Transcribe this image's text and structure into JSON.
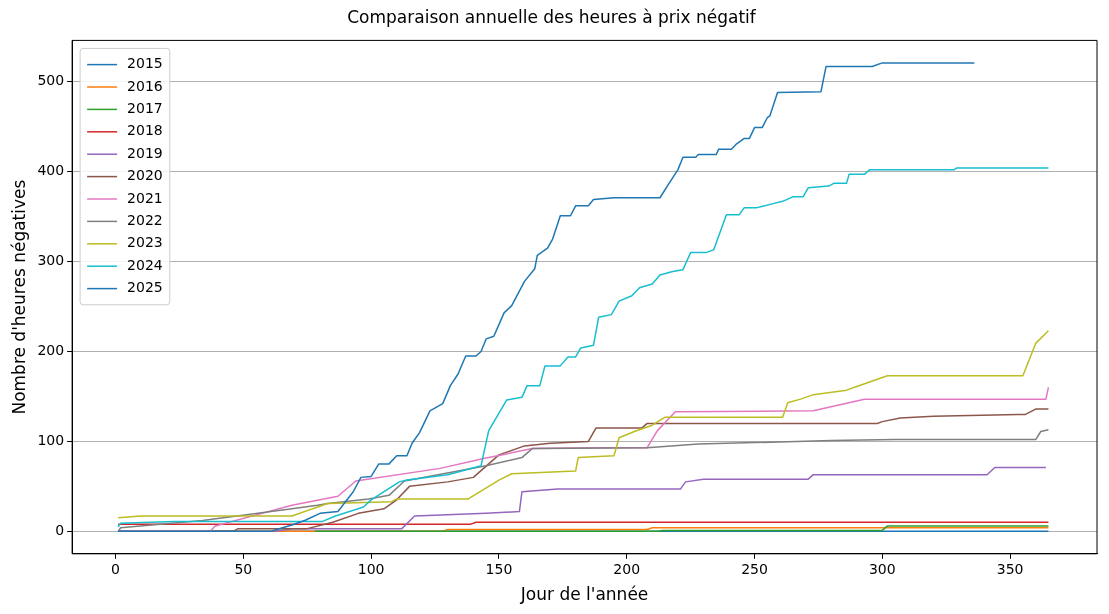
{
  "chart_data": {
    "type": "line",
    "title": "Comparaison annuelle des heures à prix négatif",
    "xlabel": "Jour de l'année",
    "ylabel": "Nombre d'heures négatives",
    "xlim": [
      -17,
      384
    ],
    "xticks": [
      0,
      50,
      100,
      150,
      200,
      250,
      300,
      350
    ],
    "ylim": [
      -25,
      546
    ],
    "yticks": [
      0,
      100,
      200,
      300,
      400,
      500
    ],
    "grid": "y",
    "legend": "top left",
    "marker": "none",
    "line_style": "solid",
    "series": [
      {
        "name": "2015",
        "color": "#1f77b4",
        "x": [
          1,
          365
        ],
        "values": [
          0,
          0
        ]
      },
      {
        "name": "2016",
        "color": "#ff7f0e",
        "x": [
          1,
          128,
          130,
          208,
          210,
          365
        ],
        "values": [
          0,
          0,
          2,
          2,
          4,
          4
        ]
      },
      {
        "name": "2017",
        "color": "#2ca02c",
        "x": [
          78,
          212,
          214,
          300,
          302,
          365
        ],
        "values": [
          0,
          0,
          1,
          1,
          6,
          6
        ]
      },
      {
        "name": "2018",
        "color": "#d62728",
        "x": [
          1,
          139,
          141,
          365
        ],
        "values": [
          8,
          8,
          10,
          10
        ]
      },
      {
        "name": "2019",
        "color": "#9467bd",
        "x": [
          62,
          70,
          112,
          117,
          145,
          158,
          159,
          173,
          221,
          223,
          230,
          271,
          273,
          341,
          344,
          364
        ],
        "values": [
          0,
          3,
          3,
          17,
          20,
          22,
          44,
          47,
          47,
          55,
          58,
          58,
          63,
          63,
          71,
          71
        ]
      },
      {
        "name": "2020",
        "color": "#8c564b",
        "x": [
          1,
          46,
          48,
          75,
          85,
          95,
          105,
          110,
          115,
          130,
          140,
          150,
          160,
          170,
          185,
          188,
          206,
          208,
          298,
          300,
          307,
          320,
          356,
          360,
          365
        ],
        "values": [
          0,
          0,
          3,
          3,
          10,
          20,
          25,
          35,
          50,
          55,
          60,
          85,
          95,
          98,
          100,
          115,
          115,
          120,
          120,
          122,
          126,
          128,
          130,
          136,
          136
        ]
      },
      {
        "name": "2021",
        "color": "#e377c2",
        "x": [
          1,
          37,
          39,
          69,
          87,
          94,
          127,
          144,
          151,
          163,
          189,
          208,
          212,
          219,
          273,
          293,
          364,
          365
        ],
        "values": [
          0,
          0,
          6,
          29,
          39,
          56,
          70,
          81,
          85,
          92,
          93,
          93,
          112,
          133,
          134,
          147,
          147,
          160
        ]
      },
      {
        "name": "2022",
        "color": "#7f7f7f",
        "x": [
          1,
          2,
          34,
          69,
          79,
          83,
          99,
          107,
          113,
          145,
          159,
          163,
          208,
          228,
          280,
          305,
          360,
          362,
          365
        ],
        "values": [
          0,
          4,
          12,
          25,
          29,
          31,
          36,
          40,
          56,
          73,
          82,
          92,
          93,
          97,
          101,
          102,
          102,
          111,
          113
        ]
      },
      {
        "name": "2023",
        "color": "#bcbd22",
        "x": [
          1,
          10,
          69,
          83,
          108,
          110,
          138,
          150,
          155,
          180,
          181,
          195,
          197,
          203,
          210,
          215,
          261,
          263,
          268,
          273,
          286,
          290,
          302,
          355,
          360,
          365
        ],
        "values": [
          15,
          17,
          17,
          31,
          33,
          36,
          36,
          57,
          64,
          67,
          82,
          84,
          104,
          111,
          118,
          127,
          127,
          143,
          147,
          152,
          157,
          161,
          173,
          173,
          209,
          223
        ]
      },
      {
        "name": "2024",
        "color": "#17becf",
        "x": [
          1,
          2,
          23,
          81,
          86,
          97,
          100,
          111,
          114,
          130,
          143,
          146,
          153,
          159,
          161,
          166,
          168,
          174,
          177,
          180,
          182,
          187,
          189,
          194,
          197,
          202,
          205,
          210,
          213,
          218,
          222,
          225,
          231,
          234,
          239,
          244,
          246,
          251,
          258,
          261,
          265,
          269,
          271,
          279,
          281,
          286,
          287,
          293,
          295,
          328,
          329,
          365
        ],
        "values": [
          5,
          9,
          11,
          11,
          17,
          27,
          35,
          55,
          57,
          63,
          73,
          112,
          146,
          149,
          162,
          162,
          184,
          184,
          194,
          194,
          204,
          207,
          238,
          241,
          256,
          262,
          271,
          275,
          285,
          289,
          291,
          310,
          310,
          313,
          352,
          352,
          360,
          360,
          365,
          367,
          372,
          372,
          382,
          384,
          387,
          387,
          397,
          397,
          402,
          402,
          404,
          404
        ]
      },
      {
        "name": "2025",
        "color": "#1f77b4",
        "x": [
          1,
          61,
          63,
          69,
          74,
          80,
          87,
          93,
          96,
          100,
          103,
          107,
          110,
          114,
          116,
          119,
          123,
          128,
          131,
          134,
          137,
          141,
          143,
          145,
          148,
          152,
          155,
          160,
          164,
          165,
          169,
          171,
          174,
          178,
          180,
          185,
          187,
          195,
          213,
          217,
          220,
          222,
          227,
          228,
          235,
          236,
          241,
          243,
          246,
          248,
          250,
          253,
          255,
          256,
          259,
          276,
          278,
          296,
          300,
          336
        ],
        "values": [
          0,
          0,
          2,
          7,
          12,
          20,
          22,
          44,
          60,
          61,
          75,
          75,
          84,
          84,
          98,
          110,
          134,
          142,
          162,
          175,
          195,
          195,
          200,
          214,
          217,
          243,
          251,
          278,
          292,
          307,
          315,
          325,
          351,
          351,
          362,
          362,
          369,
          371,
          371,
          389,
          402,
          416,
          416,
          419,
          419,
          425,
          425,
          431,
          437,
          437,
          449,
          449,
          460,
          462,
          488,
          489,
          517,
          517,
          521,
          521
        ]
      }
    ]
  }
}
